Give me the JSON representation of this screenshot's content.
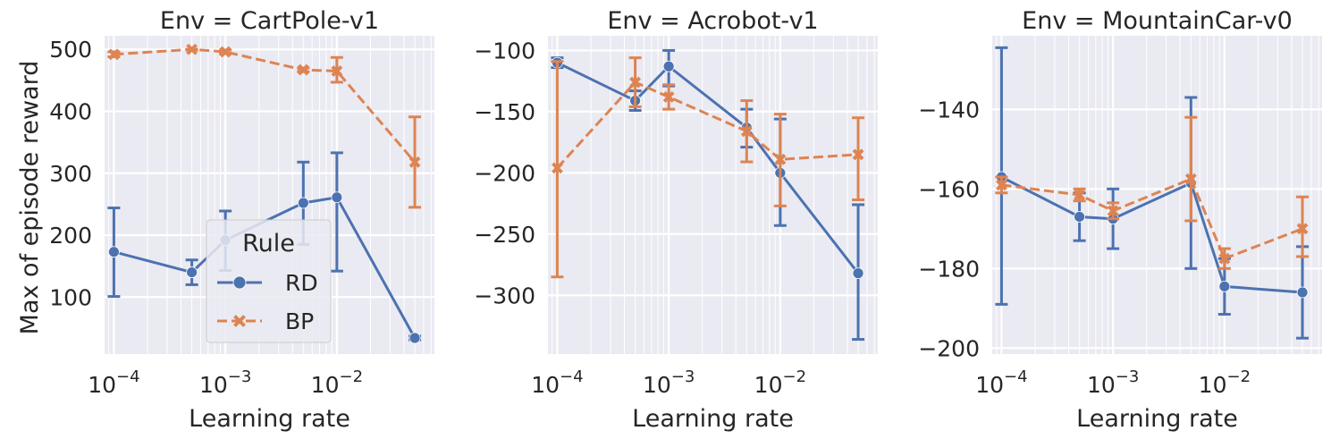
{
  "figure": {
    "xlabel": "Learning rate",
    "ylabel": "Max of episode reward"
  },
  "legend": {
    "title": "Rule",
    "placement": "lower-center of first panel",
    "entries": [
      {
        "name": "RD",
        "color": "#4c72b0",
        "marker": "circle",
        "dash": "solid"
      },
      {
        "name": "BP",
        "color": "#dd8452",
        "marker": "x",
        "dash": "dashed"
      }
    ]
  },
  "chart_data": [
    {
      "type": "line",
      "title": "Env = CartPole-v1",
      "x_scale": "log",
      "x_ticks": [
        0.0001,
        0.001,
        0.01
      ],
      "x_tick_labels": [
        "10−4",
        "10−3",
        "10−2"
      ],
      "xlim": [
        8.25e-05,
        0.075
      ],
      "ylim": [
        8,
        522
      ],
      "y_ticks": [
        100,
        200,
        300,
        400,
        500
      ],
      "y_tick_labels": [
        "100",
        "200",
        "300",
        "400",
        "500"
      ],
      "grid": true,
      "x": [
        0.0001,
        0.0005,
        0.001,
        0.005,
        0.01,
        0.05
      ],
      "series": [
        {
          "name": "RD",
          "values": [
            173,
            140,
            192,
            252,
            261,
            34
          ],
          "err_low": [
            101,
            120,
            143,
            185,
            142,
            31
          ],
          "err_high": [
            244,
            160,
            239,
            318,
            333,
            37
          ]
        },
        {
          "name": "BP",
          "values": [
            492,
            500,
            496,
            467,
            465,
            318
          ],
          "err_low": [
            488,
            499,
            493,
            464,
            447,
            245
          ],
          "err_high": [
            496,
            500,
            499,
            470,
            487,
            391
          ]
        }
      ]
    },
    {
      "type": "line",
      "title": "Env = Acrobot-v1",
      "x_scale": "log",
      "x_ticks": [
        0.0001,
        0.001,
        0.01
      ],
      "x_tick_labels": [
        "10−4",
        "10−3",
        "10−2"
      ],
      "xlim": [
        8.25e-05,
        0.075
      ],
      "ylim": [
        -348,
        -88
      ],
      "y_ticks": [
        -300,
        -250,
        -200,
        -150,
        -100
      ],
      "y_tick_labels": [
        "−300",
        "−250",
        "−200",
        "−150",
        "−100"
      ],
      "grid": true,
      "x": [
        0.0001,
        0.0005,
        0.001,
        0.005,
        0.01,
        0.05
      ],
      "series": [
        {
          "name": "RD",
          "values": [
            -110,
            -141,
            -113,
            -163,
            -200,
            -282
          ],
          "err_low": [
            -114,
            -149,
            -129,
            -179,
            -243,
            -336
          ],
          "err_high": [
            -106,
            -133,
            -100,
            -148,
            -156,
            -226
          ]
        },
        {
          "name": "BP",
          "values": [
            -196,
            -126,
            -138,
            -166,
            -189,
            -185
          ],
          "err_low": [
            -285,
            -146,
            -148,
            -191,
            -227,
            -222
          ],
          "err_high": [
            -109,
            -106,
            -128,
            -141,
            -152,
            -155
          ]
        }
      ]
    },
    {
      "type": "line",
      "title": "Env = MountainCar-v0",
      "x_scale": "log",
      "x_ticks": [
        0.0001,
        0.001,
        0.01
      ],
      "x_tick_labels": [
        "10−4",
        "10−3",
        "10−2"
      ],
      "xlim": [
        8.25e-05,
        0.075
      ],
      "ylim": [
        -201.5,
        -121.5
      ],
      "y_ticks": [
        -200,
        -180,
        -160,
        -140
      ],
      "y_tick_labels": [
        "−200",
        "−180",
        "−160",
        "−140"
      ],
      "grid": true,
      "x": [
        0.0001,
        0.0005,
        0.001,
        0.005,
        0.01,
        0.05
      ],
      "series": [
        {
          "name": "RD",
          "values": [
            -157,
            -167,
            -167.5,
            -158.5,
            -184.5,
            -186
          ],
          "err_low": [
            -189,
            -173,
            -175,
            -180,
            -191.5,
            -197.5
          ],
          "err_high": [
            -124.5,
            -161,
            -160,
            -137,
            -177.5,
            -174.5
          ]
        },
        {
          "name": "BP",
          "values": [
            -159,
            -161.5,
            -165.5,
            -157.5,
            -177.5,
            -170
          ],
          "err_low": [
            -161,
            -163,
            -167.5,
            -168,
            -180,
            -177
          ],
          "err_high": [
            -157,
            -160,
            -163.5,
            -142,
            -175,
            -162
          ]
        }
      ]
    }
  ]
}
